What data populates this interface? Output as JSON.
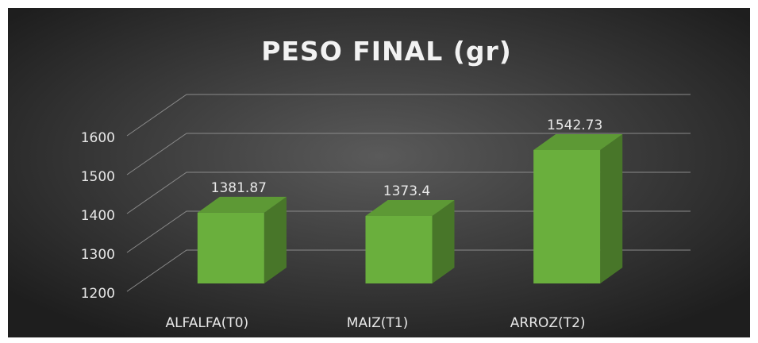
{
  "chart_data": {
    "type": "bar3d",
    "title": "PESO FINAL (gr)",
    "categories": [
      "ALFALFA(T0)",
      "MAIZ(T1)",
      "ARROZ(T2)"
    ],
    "values": [
      1381.87,
      1373.4,
      1542.73
    ],
    "color": "#6aaf3d",
    "ylim": [
      1200,
      1600
    ],
    "yticks": [
      1200,
      1300,
      1400,
      1500,
      1600
    ],
    "grid": true
  }
}
